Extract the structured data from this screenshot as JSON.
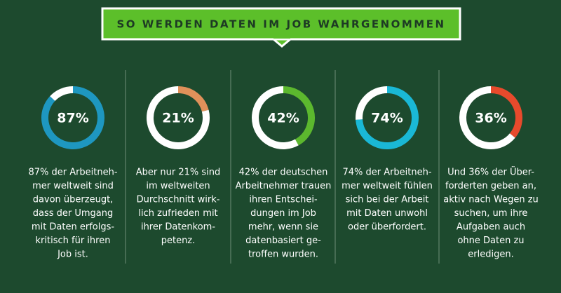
{
  "header": {
    "title": "SO WERDEN DATEN IM JOB WAHRGENOMMEN"
  },
  "chart_data": [
    {
      "type": "donut",
      "values": [
        87,
        13
      ],
      "value_labels": [
        "87%",
        null
      ],
      "colors": [
        "#1e97c0",
        "#ffffff"
      ],
      "caption": [
        "87% der Arbeitneh-",
        "mer weltweit sind",
        "davon überzeugt,",
        "dass der Umgang",
        "mit Daten erfolgs-",
        "kritisch für ihren",
        "Job ist."
      ]
    },
    {
      "type": "donut",
      "values": [
        21,
        79
      ],
      "value_labels": [
        "21%",
        null
      ],
      "colors": [
        "#e0915a",
        "#ffffff"
      ],
      "caption": [
        "Aber nur 21% sind",
        "im weltweiten",
        "Durchschnitt wirk-",
        "lich zufrieden mit",
        "ihrer Datenkom-",
        "petenz."
      ]
    },
    {
      "type": "donut",
      "values": [
        42,
        58
      ],
      "value_labels": [
        "42%",
        null
      ],
      "colors": [
        "#5cb82e",
        "#ffffff"
      ],
      "caption": [
        "42% der deutschen",
        "Arbeitnehmer trauen",
        "ihren Entschei-",
        "dungen im Job",
        "mehr, wenn sie",
        "datenbasiert ge-",
        "troffen wurden."
      ]
    },
    {
      "type": "donut",
      "values": [
        74,
        26
      ],
      "value_labels": [
        "74%",
        null
      ],
      "colors": [
        "#1ab8d6",
        "#ffffff"
      ],
      "caption": [
        "74% der Arbeitneh-",
        "mer weltweit fühlen",
        "sich bei der Arbeit",
        "mit Daten unwohl",
        "oder überfordert."
      ]
    },
    {
      "type": "donut",
      "values": [
        36,
        64
      ],
      "value_labels": [
        "36%",
        null
      ],
      "colors": [
        "#e84a2c",
        "#ffffff"
      ],
      "caption": [
        "Und 36% der Über-",
        "forderten geben an,",
        "aktiv nach Wegen zu",
        "suchen, um ihre",
        "Aufgaben auch",
        "ohne Daten zu",
        "erledigen."
      ]
    }
  ]
}
